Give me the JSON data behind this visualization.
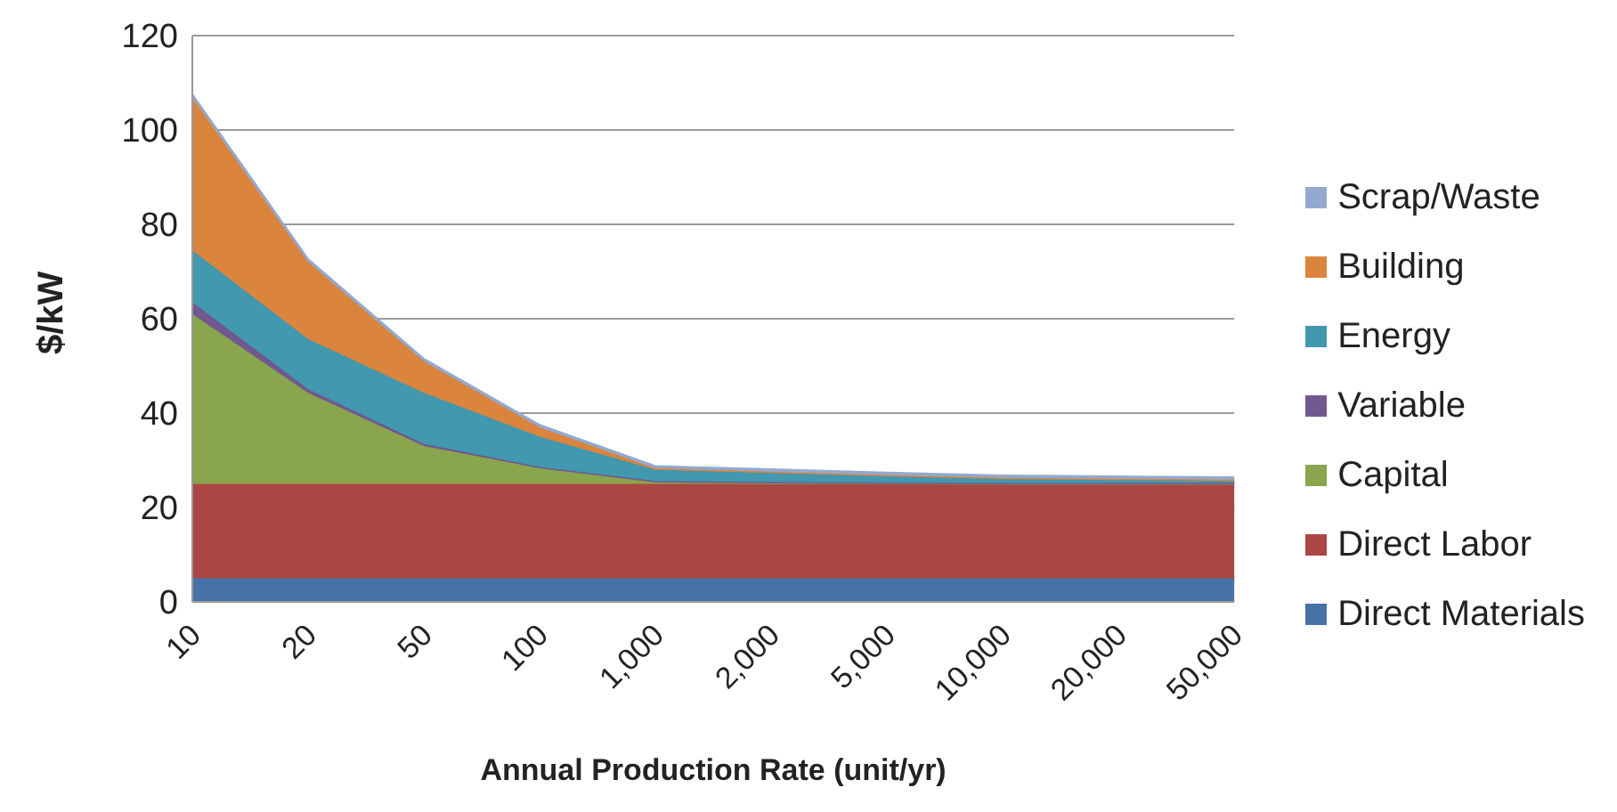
{
  "chart_data": {
    "type": "area",
    "stacked": true,
    "xlabel": "Annual Production Rate (unit/yr)",
    "ylabel": "$/kW",
    "categories": [
      "10",
      "20",
      "50",
      "100",
      "1,000",
      "2,000",
      "5,000",
      "10,000",
      "20,000",
      "50,000"
    ],
    "series": [
      {
        "name": "Direct Materials",
        "color": "#4572a7",
        "values": [
          5,
          5,
          5,
          5,
          5,
          5,
          5,
          5,
          5,
          5
        ]
      },
      {
        "name": "Direct Labor",
        "color": "#aa4643",
        "values": [
          20,
          20,
          20,
          20,
          20,
          20,
          20,
          20,
          20,
          20
        ]
      },
      {
        "name": "Capital",
        "color": "#89a54e",
        "values": [
          36,
          19.3,
          8,
          3.4,
          0.5,
          0.3,
          0.2,
          0.1,
          0.1,
          0.1
        ]
      },
      {
        "name": "Variable",
        "color": "#71588f",
        "values": [
          2.5,
          0.8,
          0.5,
          0.2,
          0.1,
          0.1,
          0.1,
          0.1,
          0.1,
          0.1
        ]
      },
      {
        "name": "Energy",
        "color": "#4198af",
        "values": [
          11,
          10.6,
          10.8,
          6.4,
          2.4,
          2,
          1.5,
          1,
          0.8,
          0.6
        ]
      },
      {
        "name": "Building",
        "color": "#db843d",
        "values": [
          32.5,
          16.4,
          6.7,
          2,
          0.3,
          0.2,
          0.1,
          0.1,
          0.1,
          0.1
        ]
      },
      {
        "name": "Scrap/Waste",
        "color": "#93a9cf",
        "values": [
          0.4,
          0.4,
          0.4,
          0.4,
          0.4,
          0.4,
          0.4,
          0.4,
          0.4,
          0.4
        ]
      }
    ],
    "ylim": [
      0,
      120
    ],
    "yticks": [
      0,
      20,
      40,
      60,
      80,
      100,
      120
    ],
    "grid": "y",
    "legend": "right"
  }
}
